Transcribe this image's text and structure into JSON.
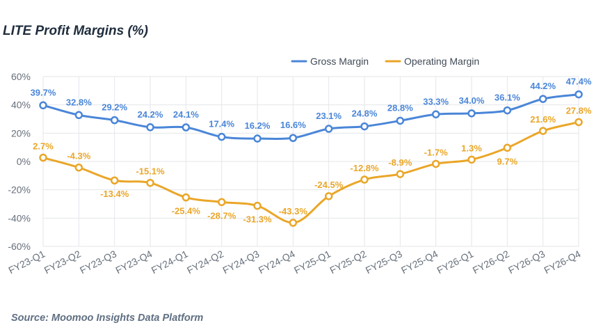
{
  "title": "LITE Profit Margins (%)",
  "source": "Source: Moomoo Insights Data Platform",
  "colors": {
    "gross": "#4a86d8",
    "operating": "#eaa628",
    "grid": "#e3e6ea"
  },
  "chart_data": {
    "type": "line",
    "title": "LITE Profit Margins (%)",
    "categories": [
      "FY23-Q1",
      "FY23-Q2",
      "FY23-Q3",
      "FY23-Q4",
      "FY24-Q1",
      "FY24-Q2",
      "FY24-Q3",
      "FY24-Q4",
      "FY25-Q1",
      "FY25-Q2",
      "FY25-Q3",
      "FY25-Q4",
      "FY26-Q1",
      "FY26-Q2",
      "FY26-Q3",
      "FY26-Q4"
    ],
    "y_ticks": [
      "60%",
      "40%",
      "20%",
      "0%",
      "-20%",
      "-40%",
      "-60%"
    ],
    "ylim": [
      -60,
      60
    ],
    "grid": true,
    "legend_position": "top-right",
    "series": [
      {
        "name": "Gross Margin",
        "values": [
          39.7,
          32.8,
          29.2,
          24.2,
          24.1,
          17.4,
          16.2,
          16.6,
          23.1,
          24.8,
          28.8,
          33.3,
          34.0,
          36.1,
          44.2,
          47.4
        ],
        "labels": [
          "39.7%",
          "32.8%",
          "29.2%",
          "24.2%",
          "24.1%",
          "17.4%",
          "16.2%",
          "16.6%",
          "23.1%",
          "24.8%",
          "28.8%",
          "33.3%",
          "34.0%",
          "36.1%",
          "44.2%",
          "47.4%"
        ]
      },
      {
        "name": "Operating Margin",
        "values": [
          2.7,
          -4.3,
          -13.4,
          -15.1,
          -25.4,
          -28.7,
          -31.3,
          -43.3,
          -24.5,
          -12.8,
          -8.9,
          -1.7,
          1.3,
          9.7,
          21.6,
          27.8
        ],
        "labels": [
          "2.7%",
          "-4.3%",
          "-13.4%",
          "-15.1%",
          "-25.4%",
          "-28.7%",
          "-31.3%",
          "-43.3%",
          "-24.5%",
          "-12.8%",
          "-8.9%",
          "-1.7%",
          "1.3%",
          "9.7%",
          "21.6%",
          "27.8%"
        ]
      }
    ]
  }
}
